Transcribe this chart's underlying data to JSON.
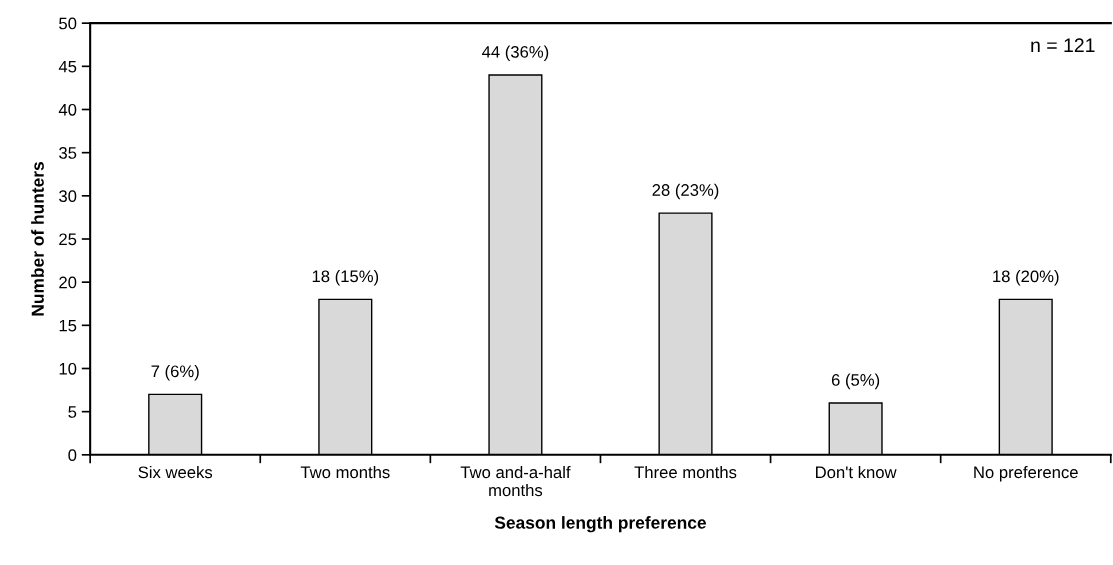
{
  "chart_data": {
    "type": "bar",
    "xlabel": "Season length preference",
    "ylabel": "Number of hunters",
    "categories": [
      "Six weeks",
      "Two months",
      "Two and-a-half\nmonths",
      "Three months",
      "Don't know",
      "No preference"
    ],
    "values": [
      7,
      18,
      44,
      28,
      6,
      18
    ],
    "value_labels": [
      "7 (6%)",
      "18 (15%)",
      "44 (36%)",
      "28 (23%)",
      "6 (5%)",
      "18 (20%)"
    ],
    "color": "#d9d9d9",
    "ylim": [
      0,
      50
    ],
    "yticks": [
      0,
      5,
      10,
      15,
      20,
      25,
      30,
      35,
      40,
      45,
      50
    ],
    "annotations": [
      "n = 121"
    ]
  }
}
